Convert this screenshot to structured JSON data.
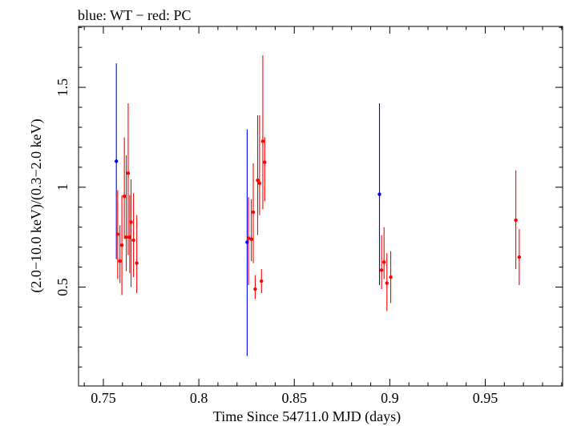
{
  "title": "blue: WT − red: PC",
  "chart_data": {
    "type": "scatter",
    "title": "blue: WT − red: PC",
    "xlabel": "Time Since 54711.0 MJD (days)",
    "ylabel": "(2.0−10.0 keV)/(0.3−2.0 keV)",
    "xlim": [
      0.737,
      0.9905
    ],
    "ylim": [
      0.005,
      1.805
    ],
    "xticks": [
      0.75,
      0.8,
      0.85,
      0.9,
      0.95
    ],
    "xtick_labels": [
      "0.75",
      "0.8",
      "0.85",
      "0.9",
      "0.95"
    ],
    "yticks": [
      0.5,
      1,
      1.5
    ],
    "ytick_labels": [
      "0.5",
      "1",
      "1.5"
    ],
    "grid": false,
    "series": [
      {
        "color": "#0000ff",
        "points": [
          {
            "x": 0.7568,
            "y": 1.13,
            "ylo": 0.64,
            "yhi": 1.62
          },
          {
            "x": 0.8253,
            "y": 0.725,
            "ylo": 0.155,
            "yhi": 1.29
          },
          {
            "x": 0.8946,
            "y": 0.965,
            "ylo": 0.51,
            "yhi": 1.42
          }
        ]
      },
      {
        "color": "#ff0000",
        "points": [
          {
            "x": 0.7575,
            "y": 0.765,
            "ylo": 0.54,
            "yhi": 0.985
          },
          {
            "x": 0.7587,
            "y": 0.63,
            "ylo": 0.52,
            "yhi": 0.81
          },
          {
            "x": 0.7597,
            "y": 0.71,
            "ylo": 0.46,
            "yhi": 0.96
          },
          {
            "x": 0.761,
            "y": 0.955,
            "ylo": 0.74,
            "yhi": 1.25
          },
          {
            "x": 0.762,
            "y": 0.75,
            "ylo": 0.58,
            "yhi": 1.16
          },
          {
            "x": 0.763,
            "y": 1.07,
            "ylo": 0.66,
            "yhi": 1.42
          },
          {
            "x": 0.7638,
            "y": 0.75,
            "ylo": 0.57,
            "yhi": 0.96
          },
          {
            "x": 0.7645,
            "y": 0.825,
            "ylo": 0.5,
            "yhi": 1.04
          },
          {
            "x": 0.7658,
            "y": 0.735,
            "ylo": 0.55,
            "yhi": 0.97
          },
          {
            "x": 0.7675,
            "y": 0.62,
            "ylo": 0.47,
            "yhi": 0.86
          },
          {
            "x": 0.826,
            "y": 0.745,
            "ylo": 0.51,
            "yhi": 0.95
          },
          {
            "x": 0.8275,
            "y": 0.74,
            "ylo": 0.63,
            "yhi": 0.94
          },
          {
            "x": 0.8285,
            "y": 0.875,
            "ylo": 0.62,
            "yhi": 1.12
          },
          {
            "x": 0.8295,
            "y": 0.49,
            "ylo": 0.44,
            "yhi": 0.56
          },
          {
            "x": 0.8308,
            "y": 1.035,
            "ylo": 0.76,
            "yhi": 1.36
          },
          {
            "x": 0.8318,
            "y": 1.02,
            "ylo": 0.86,
            "yhi": 1.36
          },
          {
            "x": 0.8328,
            "y": 0.53,
            "ylo": 0.47,
            "yhi": 0.59
          },
          {
            "x": 0.8335,
            "y": 1.23,
            "ylo": 0.89,
            "yhi": 1.66
          },
          {
            "x": 0.8345,
            "y": 1.125,
            "ylo": 0.93,
            "yhi": 1.25
          },
          {
            "x": 0.8957,
            "y": 0.585,
            "ylo": 0.49,
            "yhi": 0.76
          },
          {
            "x": 0.897,
            "y": 0.625,
            "ylo": 0.54,
            "yhi": 0.8
          },
          {
            "x": 0.8985,
            "y": 0.52,
            "ylo": 0.38,
            "yhi": 0.67
          },
          {
            "x": 0.9005,
            "y": 0.55,
            "ylo": 0.42,
            "yhi": 0.68
          },
          {
            "x": 0.966,
            "y": 0.835,
            "ylo": 0.59,
            "yhi": 1.085
          },
          {
            "x": 0.9678,
            "y": 0.65,
            "ylo": 0.51,
            "yhi": 0.79
          }
        ]
      }
    ]
  }
}
